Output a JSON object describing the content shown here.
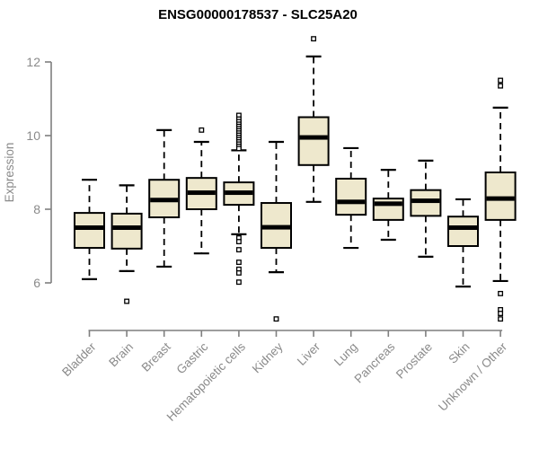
{
  "title": "ENSG00000178537 - SLC25A20",
  "chart_data": {
    "type": "boxplot",
    "title": "ENSG00000178537 - SLC25A20",
    "ylabel": "Expression",
    "xlabel": "",
    "ylim": [
      6,
      12
    ],
    "yticks": [
      6,
      8,
      10,
      12
    ],
    "grid": false,
    "legend": "none",
    "categories": [
      "Bladder",
      "Brain",
      "Breast",
      "Gastric",
      "Hematopoietic cells",
      "Kidney",
      "Liver",
      "Lung",
      "Pancreas",
      "Prostate",
      "Skin",
      "Unknown / Other"
    ],
    "series": [
      {
        "category": "Bladder",
        "low": 6.1,
        "q1": 6.95,
        "median": 7.5,
        "q3": 7.9,
        "high": 8.8,
        "outliers": []
      },
      {
        "category": "Brain",
        "low": 6.32,
        "q1": 6.93,
        "median": 7.5,
        "q3": 7.88,
        "high": 8.65,
        "outliers": [
          5.5
        ]
      },
      {
        "category": "Breast",
        "low": 6.44,
        "q1": 7.78,
        "median": 8.25,
        "q3": 8.8,
        "high": 10.15,
        "outliers": []
      },
      {
        "category": "Gastric",
        "low": 6.8,
        "q1": 8.0,
        "median": 8.45,
        "q3": 8.85,
        "high": 9.83,
        "outliers": [
          10.15
        ]
      },
      {
        "category": "Hematopoietic cells",
        "low": 7.32,
        "q1": 8.12,
        "median": 8.45,
        "q3": 8.73,
        "high": 9.6,
        "outliers": [
          10.55,
          10.45,
          10.38,
          10.31,
          10.25,
          10.19,
          10.13,
          10.07,
          10.01,
          9.95,
          9.89,
          9.83,
          9.77,
          9.71,
          9.65,
          7.22,
          7.12,
          6.9,
          6.56,
          6.37,
          6.27,
          6.02
        ]
      },
      {
        "category": "Kidney",
        "low": 6.29,
        "q1": 6.95,
        "median": 7.51,
        "q3": 8.17,
        "high": 9.83,
        "outliers": [
          5.02
        ]
      },
      {
        "category": "Liver",
        "low": 8.2,
        "q1": 9.2,
        "median": 9.95,
        "q3": 10.5,
        "high": 12.15,
        "outliers": [
          12.63
        ]
      },
      {
        "category": "Lung",
        "low": 6.95,
        "q1": 7.85,
        "median": 8.2,
        "q3": 8.83,
        "high": 9.66,
        "outliers": []
      },
      {
        "category": "Pancreas",
        "low": 7.17,
        "q1": 7.71,
        "median": 8.15,
        "q3": 8.29,
        "high": 9.07,
        "outliers": []
      },
      {
        "category": "Prostate",
        "low": 6.71,
        "q1": 7.82,
        "median": 8.23,
        "q3": 8.52,
        "high": 9.32,
        "outliers": []
      },
      {
        "category": "Skin",
        "low": 5.9,
        "q1": 7.0,
        "median": 7.5,
        "q3": 7.8,
        "high": 8.27,
        "outliers": []
      },
      {
        "category": "Unknown / Other",
        "low": 6.05,
        "q1": 7.71,
        "median": 8.29,
        "q3": 9.0,
        "high": 10.76,
        "outliers": [
          11.5,
          11.35,
          5.71,
          5.27,
          5.17,
          5.02
        ]
      }
    ],
    "colors": {
      "box_fill": "#EEE8CD",
      "box_stroke": "#000000",
      "median": "#000000",
      "axis": "#7f7f7f",
      "tick_label": "#8a8a8a",
      "title": "#000000",
      "background": "#ffffff"
    }
  }
}
